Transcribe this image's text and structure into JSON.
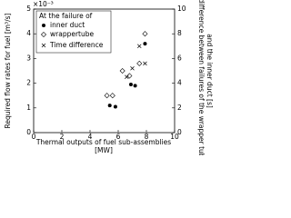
{
  "chart_data": {
    "type": "scatter",
    "y_multiplier": "×10⁻³",
    "xlabel": [
      "Thermal outputs of fuel sub-assemblies",
      "[MW]"
    ],
    "ylabel": "Required flow rates for fuel [m³/s]",
    "y2label": [
      "Time difference between failures of the wrapper tube",
      "and the inner duct [s]"
    ],
    "legend_title": "At the failure of",
    "xlim": [
      0,
      10
    ],
    "xticks": [
      0,
      2,
      4,
      6,
      8,
      10
    ],
    "ylim": [
      0,
      5
    ],
    "yticks": [
      0,
      1,
      2,
      3,
      4,
      5
    ],
    "y2lim": [
      0,
      10
    ],
    "y2ticks": [
      0,
      2,
      4,
      6,
      8,
      10
    ],
    "series": [
      {
        "name": "inner duct",
        "marker": "circle",
        "color": "#000000",
        "x": [
          5.4,
          5.8,
          6.9,
          7.2,
          7.9
        ],
        "values": [
          1.1,
          1.05,
          1.95,
          1.9,
          3.6
        ]
      },
      {
        "name": "wrappertube",
        "marker": "diamond",
        "color": "#000000",
        "x": [
          5.2,
          5.6,
          6.3,
          6.8,
          7.5,
          7.9
        ],
        "values": [
          1.5,
          1.5,
          2.5,
          2.3,
          2.8,
          4.0
        ]
      },
      {
        "name": "Time difference",
        "marker": "x",
        "color": "#000000",
        "axis": "y2",
        "x": [
          6.6,
          7.0,
          7.5,
          7.9
        ],
        "values": [
          4.5,
          5.2,
          7.0,
          5.6
        ]
      }
    ]
  }
}
